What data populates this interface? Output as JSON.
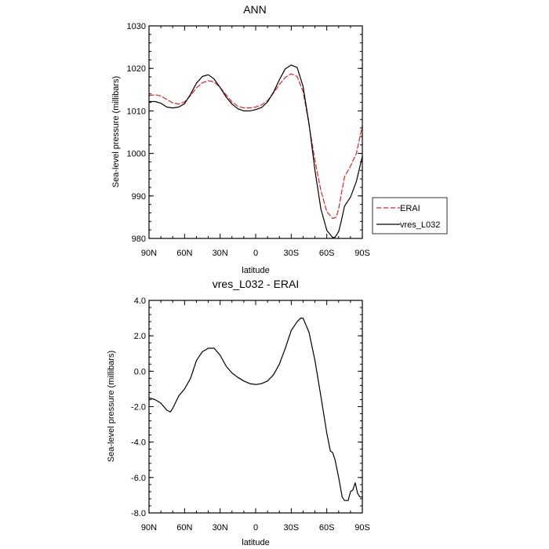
{
  "chart_data": [
    {
      "type": "line",
      "title": "ANN",
      "xlabel": "latitude",
      "ylabel": "Sea-level pressure (millibars)",
      "xlim": [
        90,
        -90
      ],
      "ylim": [
        980,
        1030
      ],
      "xticks": [
        90,
        60,
        30,
        0,
        -30,
        -60,
        -90
      ],
      "xtick_labels": [
        "90N",
        "60N",
        "30N",
        "0",
        "30S",
        "60S",
        "90S"
      ],
      "yticks": [
        980,
        990,
        1000,
        1010,
        1020,
        1030
      ],
      "ytick_labels": [
        "980",
        "990",
        "1000",
        "1010",
        "1020",
        "1030"
      ],
      "legend": {
        "position": "right",
        "entries": [
          "ERAI",
          "vres_L032"
        ]
      },
      "series": [
        {
          "name": "ERAI",
          "color": "#e0211f",
          "dash": "dashed",
          "x": [
            90,
            85,
            80,
            75,
            70,
            65,
            60,
            55,
            50,
            45,
            40,
            35,
            30,
            25,
            20,
            15,
            10,
            5,
            0,
            -5,
            -10,
            -15,
            -20,
            -25,
            -30,
            -35,
            -40,
            -45,
            -50,
            -55,
            -60,
            -65,
            -68,
            -70,
            -72,
            -75,
            -80,
            -85,
            -90
          ],
          "y": [
            1013.6,
            1013.8,
            1013.5,
            1012.7,
            1011.9,
            1011.6,
            1012.1,
            1013.6,
            1015.4,
            1016.6,
            1017.1,
            1016.8,
            1015.5,
            1013.8,
            1012.1,
            1011.1,
            1010.7,
            1010.7,
            1010.9,
            1011.4,
            1012.4,
            1014.2,
            1016.2,
            1017.9,
            1018.7,
            1018.1,
            1014.6,
            1006.8,
            998.3,
            991.3,
            986.3,
            984.7,
            985.0,
            987.0,
            990.0,
            994.5,
            997.0,
            1000.0,
            1006.5
          ]
        },
        {
          "name": "vres_L032",
          "color": "#000000",
          "dash": "solid",
          "x": [
            90,
            85,
            80,
            75,
            70,
            65,
            60,
            55,
            50,
            45,
            40,
            35,
            30,
            25,
            20,
            15,
            10,
            5,
            0,
            -5,
            -10,
            -15,
            -20,
            -25,
            -30,
            -35,
            -40,
            -45,
            -50,
            -55,
            -60,
            -65,
            -67,
            -70,
            -72,
            -75,
            -80,
            -85,
            -90
          ],
          "y": [
            1012.2,
            1012.2,
            1011.8,
            1010.9,
            1010.7,
            1010.9,
            1011.7,
            1013.9,
            1016.5,
            1018.1,
            1018.5,
            1017.5,
            1015.5,
            1013.3,
            1011.6,
            1010.5,
            1010.0,
            1010.0,
            1010.3,
            1010.8,
            1012.1,
            1014.4,
            1017.3,
            1019.9,
            1020.8,
            1020.2,
            1015.8,
            1007.0,
            996.0,
            987.0,
            981.9,
            980.2,
            980.3,
            981.6,
            983.8,
            987.6,
            989.7,
            993.4,
            999.3
          ]
        }
      ]
    },
    {
      "type": "line",
      "title": "vres_L032 - ERAI",
      "xlabel": "latitude",
      "ylabel": "Sea-level pressure (millibars)",
      "xlim": [
        90,
        -90
      ],
      "ylim": [
        -8,
        4
      ],
      "xticks": [
        90,
        60,
        30,
        0,
        -30,
        -60,
        -90
      ],
      "xtick_labels": [
        "90N",
        "60N",
        "30N",
        "0",
        "30S",
        "60S",
        "90S"
      ],
      "yticks": [
        -8,
        -6,
        -4,
        -2,
        0,
        2,
        4
      ],
      "ytick_labels": [
        "-8.0",
        "-6.0",
        "-4.0",
        "-2.0",
        "0.0",
        "2.0",
        "4.0"
      ],
      "series": [
        {
          "name": "vres_L032 - ERAI",
          "color": "#000000",
          "dash": "solid",
          "x": [
            90,
            85,
            80,
            75,
            72,
            70,
            65,
            60,
            55,
            50,
            45,
            40,
            35,
            30,
            25,
            20,
            15,
            10,
            5,
            0,
            -5,
            -10,
            -15,
            -20,
            -25,
            -30,
            -35,
            -38,
            -40,
            -45,
            -50,
            -55,
            -60,
            -63,
            -65,
            -67,
            -70,
            -73,
            -75,
            -78,
            -80,
            -82,
            -84,
            -86,
            -88,
            -90
          ],
          "y": [
            -1.5,
            -1.6,
            -1.8,
            -2.2,
            -2.3,
            -2.1,
            -1.4,
            -1.0,
            -0.4,
            0.6,
            1.1,
            1.3,
            1.3,
            0.9,
            0.3,
            -0.1,
            -0.35,
            -0.55,
            -0.7,
            -0.75,
            -0.7,
            -0.55,
            -0.2,
            0.4,
            1.3,
            2.3,
            2.8,
            3.0,
            3.0,
            2.2,
            0.6,
            -1.4,
            -3.5,
            -4.5,
            -4.6,
            -5.0,
            -6.0,
            -7.1,
            -7.3,
            -7.3,
            -6.8,
            -6.7,
            -6.3,
            -6.9,
            -7.1,
            -7.1
          ]
        }
      ]
    }
  ]
}
